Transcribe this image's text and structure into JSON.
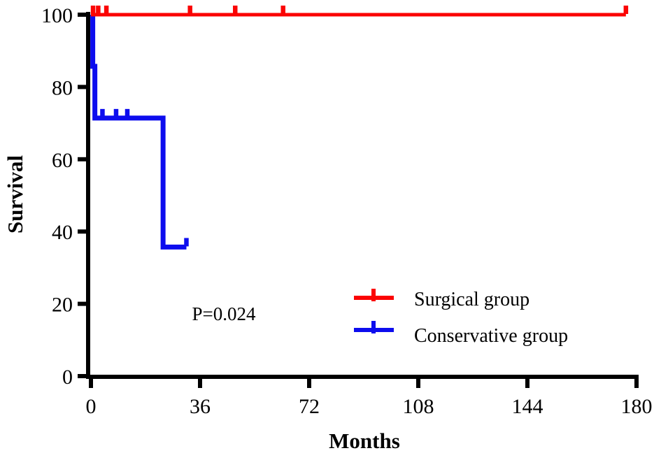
{
  "figure": {
    "background_color": "#ffffff",
    "axis_color": "#000000"
  },
  "chart_data": {
    "type": "line",
    "subtype": "kaplan-meier-step",
    "title": "",
    "xlabel": "Months",
    "ylabel": "Survival",
    "xlim": [
      0,
      180
    ],
    "ylim": [
      0,
      100
    ],
    "xticks": [
      0,
      36,
      72,
      108,
      144,
      180
    ],
    "yticks": [
      0,
      20,
      40,
      60,
      80,
      100
    ],
    "grid": false,
    "legend_position": "inside-lower-right",
    "annotation": "P=0.024",
    "series": [
      {
        "name": "Surgical group",
        "color": "#fb0404",
        "line_width": 5,
        "steps": [
          [
            0,
            100
          ],
          [
            176.5,
            100
          ]
        ],
        "censor_marks": [
          [
            0.7,
            100
          ],
          [
            2.4,
            100
          ],
          [
            5.1,
            100
          ],
          [
            32.7,
            100
          ],
          [
            47.6,
            100
          ],
          [
            63.4,
            100
          ],
          [
            176.5,
            100
          ]
        ]
      },
      {
        "name": "Conservative group",
        "color": "#0d0dee",
        "line_width": 7,
        "steps": [
          [
            0,
            100
          ],
          [
            0.6,
            100
          ],
          [
            0.6,
            85.7
          ],
          [
            1.3,
            85.7
          ],
          [
            1.3,
            71.4
          ],
          [
            23.8,
            71.4
          ],
          [
            23.8,
            35.7
          ],
          [
            31.5,
            35.7
          ]
        ],
        "censor_marks": [
          [
            3.8,
            71.4
          ],
          [
            8.3,
            71.4
          ],
          [
            12,
            71.4
          ],
          [
            31.5,
            35.7
          ]
        ]
      }
    ]
  }
}
